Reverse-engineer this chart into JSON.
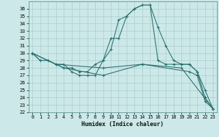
{
  "background_color": "#cce8e8",
  "grid_color": "#aacccc",
  "line_color": "#2a7070",
  "xlabel": "Humidex (Indice chaleur)",
  "xlim": [
    -0.5,
    23.5
  ],
  "ylim": [
    22,
    37
  ],
  "yticks": [
    22,
    23,
    24,
    25,
    26,
    27,
    28,
    29,
    30,
    31,
    32,
    33,
    34,
    35,
    36
  ],
  "xticks": [
    0,
    1,
    2,
    3,
    4,
    5,
    6,
    7,
    8,
    9,
    10,
    11,
    12,
    13,
    14,
    15,
    16,
    17,
    18,
    19,
    20,
    21,
    22,
    23
  ],
  "curves": [
    {
      "x": [
        0,
        1,
        2,
        3,
        4,
        5,
        6,
        7,
        8,
        9,
        10,
        11,
        12,
        13,
        14,
        15,
        16,
        17,
        18,
        19,
        20,
        21,
        22,
        23
      ],
      "y": [
        30.0,
        29.0,
        29.0,
        28.5,
        28.5,
        27.5,
        27.0,
        27.0,
        27.0,
        29.0,
        30.5,
        34.5,
        35.0,
        36.0,
        36.5,
        36.5,
        33.5,
        31.0,
        29.0,
        28.5,
        28.5,
        27.5,
        25.0,
        22.5
      ]
    },
    {
      "x": [
        0,
        1,
        2,
        3,
        4,
        5,
        6,
        7,
        8,
        9,
        10,
        11,
        12,
        13,
        14,
        15,
        16,
        17,
        18,
        19,
        20,
        21,
        22,
        23
      ],
      "y": [
        30.0,
        29.0,
        29.0,
        28.5,
        28.0,
        28.0,
        27.5,
        27.5,
        28.5,
        29.0,
        32.0,
        32.0,
        35.0,
        36.0,
        36.5,
        36.5,
        29.0,
        28.5,
        28.5,
        28.5,
        28.5,
        27.5,
        24.0,
        22.5
      ]
    },
    {
      "x": [
        0,
        3,
        9,
        14,
        19,
        23
      ],
      "y": [
        30.0,
        28.5,
        28.0,
        28.5,
        28.0,
        22.5
      ]
    },
    {
      "x": [
        0,
        4,
        9,
        14,
        20,
        21,
        22,
        23
      ],
      "y": [
        30.0,
        28.0,
        27.0,
        28.5,
        27.5,
        27.0,
        23.5,
        22.5
      ]
    }
  ]
}
